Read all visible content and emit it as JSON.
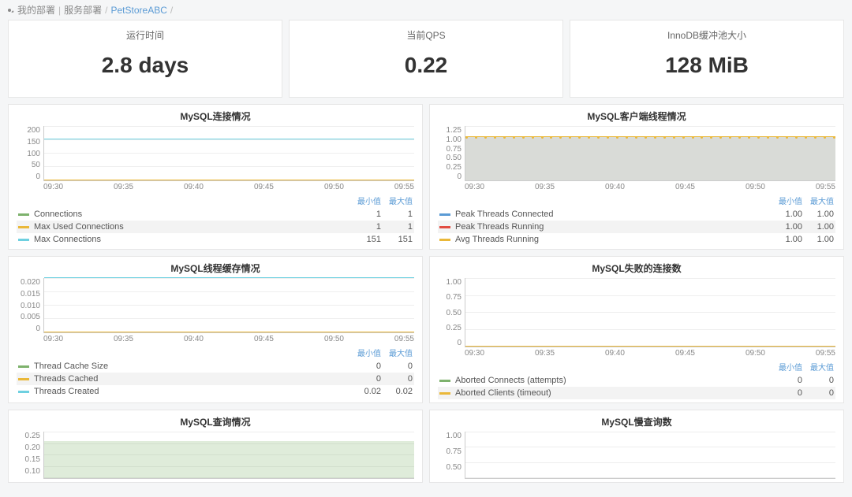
{
  "breadcrumb": {
    "root": "我的部署",
    "svc_deploy": "服务部署",
    "current": "PetStoreABC"
  },
  "colors": {
    "green": "#7eb26d",
    "yellow": "#eab839",
    "cyan": "#6ed0e0",
    "blue": "#5b9bd5",
    "grid": "#eeeeee",
    "fill_green": "rgba(126,178,109,0.25)",
    "fill_gray": "#d9dbd7"
  },
  "stats": [
    {
      "title": "运行时间",
      "value": "2.8 days"
    },
    {
      "title": "当前QPS",
      "value": "0.22"
    },
    {
      "title": "InnoDB缓冲池大小",
      "value": "128 MiB"
    }
  ],
  "x_ticks": [
    "09:30",
    "09:35",
    "09:40",
    "09:45",
    "09:50",
    "09:55"
  ],
  "legend_headers": {
    "min": "最小值",
    "max": "最大值"
  },
  "panels": {
    "conn": {
      "title": "MySQL连接情况",
      "y_ticks": [
        "200",
        "150",
        "100",
        "50",
        "0"
      ],
      "ymax": 200,
      "series": [
        {
          "label": "Connections",
          "color": "#7eb26d",
          "value": 1,
          "min": "1",
          "max": "1"
        },
        {
          "label": "Max Used Connections",
          "color": "#eab839",
          "value": 1,
          "min": "1",
          "max": "1"
        },
        {
          "label": "Max Connections",
          "color": "#6ed0e0",
          "value": 151,
          "min": "151",
          "max": "151"
        }
      ]
    },
    "client_threads": {
      "title": "MySQL客户端线程情况",
      "y_ticks": [
        "1.25",
        "1.00",
        "0.75",
        "0.50",
        "0.25",
        "0"
      ],
      "ymax": 1.25,
      "fill_to": 1.0,
      "fill_color": "#d9dbd7",
      "dashed_color": "#eab839",
      "series": [
        {
          "label": "Peak Threads Connected",
          "color": "#5b9bd5",
          "value": 1.0,
          "min": "1.00",
          "max": "1.00"
        },
        {
          "label": "Peak Threads Running",
          "color": "#e24d42",
          "value": 1.0,
          "min": "1.00",
          "max": "1.00"
        },
        {
          "label": "Avg Threads Running",
          "color": "#eab839",
          "value": 1.0,
          "min": "1.00",
          "max": "1.00"
        }
      ]
    },
    "thread_cache": {
      "title": "MySQL线程缓存情况",
      "y_ticks": [
        "0.020",
        "0.015",
        "0.010",
        "0.005",
        "0"
      ],
      "ymax": 0.02,
      "series": [
        {
          "label": "Thread Cache Size",
          "color": "#7eb26d",
          "value": 0,
          "min": "0",
          "max": "0"
        },
        {
          "label": "Threads Cached",
          "color": "#eab839",
          "value": 0,
          "min": "0",
          "max": "0"
        },
        {
          "label": "Threads Created",
          "color": "#6ed0e0",
          "value": 0.02,
          "min": "0.02",
          "max": "0.02"
        }
      ]
    },
    "failed_conn": {
      "title": "MySQL失败的连接数",
      "y_ticks": [
        "1.00",
        "0.75",
        "0.50",
        "0.25",
        "0"
      ],
      "ymax": 1.0,
      "series": [
        {
          "label": "Aborted Connects (attempts)",
          "color": "#7eb26d",
          "value": 0,
          "min": "0",
          "max": "0"
        },
        {
          "label": "Aborted Clients (timeout)",
          "color": "#eab839",
          "value": 0,
          "min": "0",
          "max": "0"
        }
      ]
    },
    "queries": {
      "title": "MySQL查询情况",
      "y_ticks": [
        "0.25",
        "0.20",
        "0.15",
        "0.10",
        ""
      ],
      "ymax": 0.25,
      "fill_to": 0.2,
      "fill_color": "rgba(126,178,109,0.25)"
    },
    "slow_queries": {
      "title": "MySQL慢查询数",
      "y_ticks": [
        "1.00",
        "0.75",
        "0.50",
        ""
      ],
      "ymax": 1.0
    }
  }
}
